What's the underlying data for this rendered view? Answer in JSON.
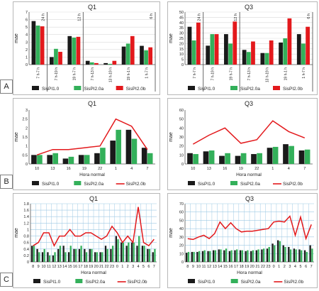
{
  "colors": {
    "s10": "#1a1a1a",
    "s20a": "#33b05a",
    "s20b": "#e3191c",
    "grid": "#9ec9e4",
    "axis": "#555555"
  },
  "rows": [
    {
      "label": "A",
      "ylabel": "mae"
    },
    {
      "label": "B",
      "ylabel": "mae",
      "xlabel": "Hora normal"
    },
    {
      "label": "C",
      "ylabel": "mae",
      "xlabel": "Hora normal"
    }
  ],
  "chart_data": [
    {
      "type": "bar",
      "title": "Q1",
      "ylabel": "mae",
      "ylim": [
        0,
        7
      ],
      "yticks": [
        "0",
        "1",
        "2",
        "3",
        "4",
        "5",
        "6",
        "7"
      ],
      "categories": [
        "7 h-7 h",
        "7 h-19 h",
        "19 h-7 h",
        "7 h-13 h",
        "13 h-19 h",
        "19 h-1 h",
        "1 h-7 h"
      ],
      "groups": [
        "24 h",
        "12 h",
        "6 h"
      ],
      "series": [
        {
          "name": "SisPI1.0",
          "values": [
            5.8,
            1.0,
            3.8,
            0.5,
            0.2,
            2.4,
            2.5
          ]
        },
        {
          "name": "SisPI2.0a",
          "values": [
            5.2,
            2.1,
            3.6,
            0.3,
            0.1,
            2.8,
            1.9
          ]
        },
        {
          "name": "SisPI2.0b",
          "values": [
            5.1,
            1.7,
            3.7,
            0.2,
            0.5,
            3.8,
            2.3
          ]
        }
      ]
    },
    {
      "type": "bar",
      "title": "Q3",
      "ylabel": "mae",
      "ylim": [
        0,
        50
      ],
      "yticks": [
        "0",
        "5",
        "10",
        "15",
        "20",
        "25",
        "30",
        "35",
        "40",
        "45",
        "50"
      ],
      "categories": [
        "7 h-7 h",
        "7 h-19 h",
        "19 h-7 h",
        "7 h-13 h",
        "13 h-19 h",
        "19 h-1 h",
        "1 h-7 h"
      ],
      "groups": [
        "24 h",
        "12 h",
        "6 h"
      ],
      "series": [
        {
          "name": "SisPI1.0",
          "values": [
            36,
            18,
            29,
            14,
            11,
            21,
            29
          ]
        },
        {
          "name": "SisPI2.0a",
          "values": [
            23,
            29,
            20,
            12,
            11,
            25,
            20
          ]
        },
        {
          "name": "SisPI2.0b",
          "values": [
            40,
            29,
            41,
            22,
            23,
            44,
            36
          ]
        }
      ]
    },
    {
      "type": "bar",
      "title": "Q1",
      "ylabel": "mae",
      "xlabel": "Hora normal",
      "ylim": [
        0,
        3
      ],
      "yticks": [
        "0",
        "0.5",
        "1",
        "1.5",
        "2",
        "2.5",
        "3"
      ],
      "categories": [
        "10",
        "13",
        "16",
        "19",
        "22",
        "1",
        "4",
        "7"
      ],
      "series": [
        {
          "name": "SisPI1.0",
          "values": [
            0.5,
            0.5,
            0.3,
            0.5,
            0.6,
            1.3,
            1.9,
            0.9
          ]
        },
        {
          "name": "SisPI2.0a",
          "values": [
            0.5,
            0.6,
            0.4,
            0.5,
            0.9,
            1.9,
            1.4,
            0.6
          ]
        },
        {
          "name": "SisPI2.0b",
          "type": "line",
          "values": [
            0.5,
            0.8,
            0.8,
            0.9,
            1.0,
            2.5,
            2.1,
            0.8
          ]
        }
      ]
    },
    {
      "type": "bar",
      "title": "Q3",
      "ylabel": "mae",
      "xlabel": "Hora normal",
      "ylim": [
        0,
        60
      ],
      "yticks": [
        "0",
        "10",
        "20",
        "30",
        "40",
        "50",
        "60"
      ],
      "categories": [
        "10",
        "13",
        "16",
        "19",
        "22",
        "1",
        "4",
        "7"
      ],
      "series": [
        {
          "name": "SisPI1.0",
          "values": [
            12,
            14,
            9,
            9,
            11,
            18,
            22,
            15
          ]
        },
        {
          "name": "SisPI2.0a",
          "values": [
            11,
            15,
            12,
            12,
            12,
            19,
            20,
            16
          ]
        },
        {
          "name": "SisPI2.0b",
          "type": "line",
          "values": [
            22,
            32,
            40,
            23,
            27,
            48,
            36,
            29
          ]
        }
      ]
    },
    {
      "type": "bar",
      "title": "Q1",
      "ylabel": "mae",
      "xlabel": "Hora normal",
      "ylim": [
        0,
        1.8
      ],
      "yticks": [
        "0",
        "0.2",
        "0.4",
        "0.6",
        "0.8",
        "1",
        "1.2",
        "1.4",
        "1.6",
        "1.8"
      ],
      "categories": [
        "8",
        "9",
        "10",
        "11",
        "12",
        "13",
        "14",
        "15",
        "16",
        "17",
        "18",
        "19",
        "20",
        "21",
        "22",
        "23",
        "0",
        "1",
        "2",
        "3",
        "4",
        "5",
        "6",
        "7"
      ],
      "series": [
        {
          "name": "SisPI1.0",
          "values": [
            0.5,
            0.4,
            0.3,
            0.3,
            0.2,
            0.4,
            0.5,
            0.3,
            0.4,
            0.4,
            0.4,
            0.4,
            0.3,
            0.3,
            0.5,
            0.4,
            0.8,
            0.6,
            0.5,
            0.6,
            0.5,
            0.5,
            0.4,
            0.3
          ]
        },
        {
          "name": "SisPI2.0a",
          "values": [
            0.5,
            0.3,
            0.4,
            0.2,
            0.3,
            0.5,
            0.3,
            0.5,
            0.4,
            0.5,
            0.3,
            0.4,
            0.3,
            0.3,
            0.4,
            0.5,
            0.7,
            0.6,
            0.6,
            0.6,
            0.8,
            0.5,
            0.4,
            0.4
          ]
        },
        {
          "name": "SisPI2.0b",
          "type": "line",
          "values": [
            0.5,
            0.6,
            0.9,
            0.9,
            0.5,
            0.8,
            0.8,
            1.0,
            0.8,
            0.8,
            0.9,
            0.9,
            0.8,
            0.7,
            0.8,
            1.1,
            0.9,
            0.6,
            0.8,
            0.6,
            1.7,
            0.6,
            0.5,
            0.7
          ]
        }
      ]
    },
    {
      "type": "bar",
      "title": "Q3",
      "ylabel": "mae",
      "xlabel": "Hora normal",
      "ylim": [
        0,
        70
      ],
      "yticks": [
        "0",
        "10",
        "20",
        "30",
        "40",
        "50",
        "60",
        "70"
      ],
      "categories": [
        "8",
        "9",
        "10",
        "11",
        "12",
        "13",
        "14",
        "15",
        "16",
        "17",
        "18",
        "19",
        "20",
        "21",
        "22",
        "23",
        "0",
        "1",
        "2",
        "3",
        "4",
        "5",
        "6",
        "7"
      ],
      "series": [
        {
          "name": "SisPI1.0",
          "values": [
            11,
            12,
            12,
            13,
            13,
            14,
            15,
            14,
            13,
            14,
            14,
            13,
            13,
            14,
            15,
            16,
            22,
            26,
            20,
            18,
            16,
            15,
            14,
            20
          ]
        },
        {
          "name": "SisPI2.0a",
          "values": [
            12,
            12,
            13,
            14,
            13,
            14,
            15,
            16,
            14,
            15,
            14,
            14,
            14,
            15,
            16,
            18,
            20,
            25,
            18,
            15,
            15,
            14,
            12,
            16
          ]
        },
        {
          "name": "SisPI2.0b",
          "type": "line",
          "values": [
            28,
            27,
            30,
            32,
            28,
            34,
            48,
            40,
            47,
            40,
            36,
            37,
            37,
            38,
            39,
            40,
            48,
            49,
            48,
            55,
            32,
            54,
            28,
            45
          ]
        }
      ]
    }
  ]
}
